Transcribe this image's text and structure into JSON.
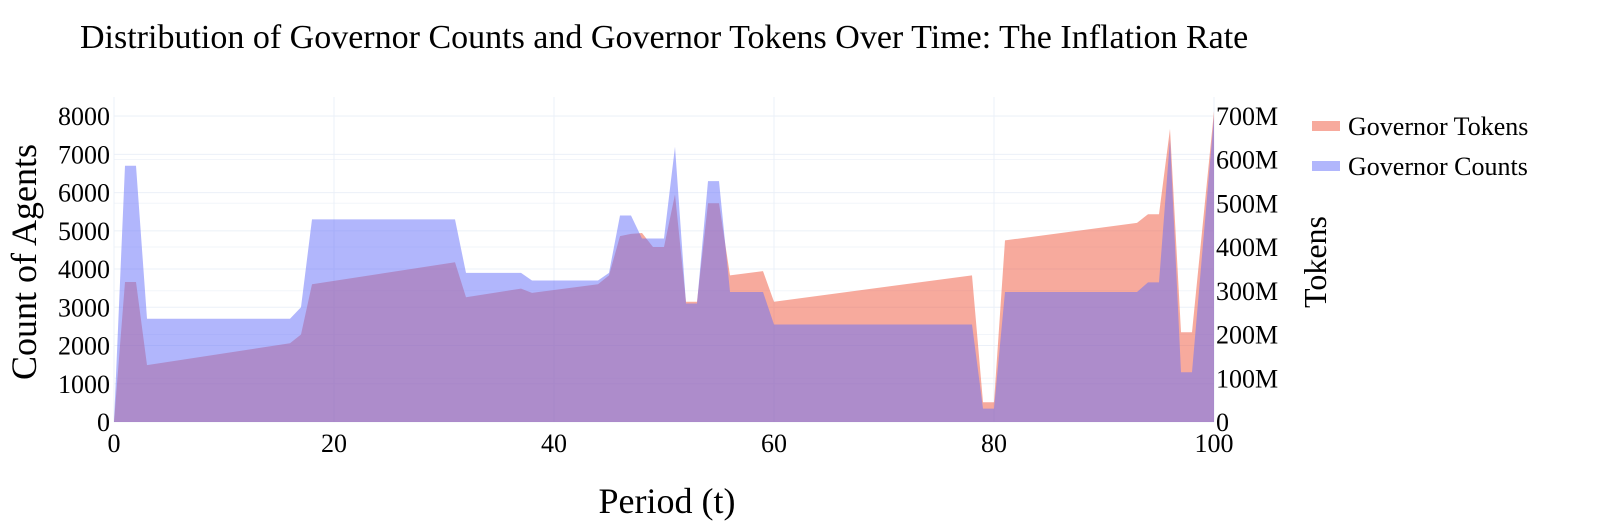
{
  "chart_data": {
    "type": "area",
    "title": "Distribution of Governor Counts and Governor Tokens Over Time: The Inflation Rate",
    "xlabel": "Period (t)",
    "ylabel": "Count of Agents",
    "y2label": "Tokens",
    "xlim": [
      0,
      100
    ],
    "ylim": [
      0,
      8500
    ],
    "y2lim": [
      0,
      742857143
    ],
    "xticks": [
      "0",
      "20",
      "40",
      "60",
      "80",
      "100"
    ],
    "yticks": [
      "0",
      "1000",
      "2000",
      "3000",
      "4000",
      "5000",
      "6000",
      "7000",
      "8000"
    ],
    "y2ticks": [
      "0",
      "100M",
      "200M",
      "300M",
      "400M",
      "500M",
      "600M",
      "700M"
    ],
    "legend_position": "top-right",
    "grid": true,
    "series": [
      {
        "name": "Governor Tokens",
        "axis": "right",
        "color": "#ef553b",
        "x": [
          0,
          1,
          2,
          3,
          16,
          17,
          18,
          31,
          32,
          37,
          38,
          44,
          45,
          46,
          47,
          48,
          49,
          50,
          51,
          52,
          53,
          54,
          55,
          56,
          59,
          60,
          78,
          79,
          80,
          81,
          93,
          94,
          95,
          96,
          97,
          98,
          100
        ],
        "y": [
          0,
          320000000,
          320000000,
          130000000,
          180000000,
          200000000,
          315000000,
          365000000,
          285000000,
          305000000,
          295000000,
          315000000,
          335000000,
          425000000,
          430000000,
          432000000,
          400000000,
          400000000,
          520000000,
          275000000,
          275000000,
          500000000,
          500000000,
          335000000,
          345000000,
          275000000,
          335000000,
          45000000,
          45000000,
          415000000,
          455000000,
          475000000,
          475000000,
          670000000,
          205000000,
          205000000,
          710000000
        ]
      },
      {
        "name": "Governor Counts",
        "axis": "left",
        "color": "#636efa",
        "x": [
          0,
          1,
          2,
          3,
          16,
          17,
          18,
          31,
          32,
          37,
          38,
          44,
          45,
          46,
          47,
          48,
          49,
          50,
          51,
          52,
          53,
          54,
          55,
          56,
          59,
          60,
          78,
          79,
          80,
          81,
          93,
          94,
          95,
          96,
          97,
          98,
          100
        ],
        "y": [
          0,
          6700,
          6700,
          2700,
          2700,
          3000,
          5300,
          5300,
          3900,
          3900,
          3700,
          3700,
          3900,
          5400,
          5400,
          4800,
          4800,
          4800,
          7200,
          3100,
          3100,
          6300,
          6300,
          3400,
          3400,
          2550,
          2550,
          350,
          350,
          3400,
          3400,
          3650,
          3650,
          7400,
          1300,
          1300,
          8000
        ]
      }
    ]
  }
}
